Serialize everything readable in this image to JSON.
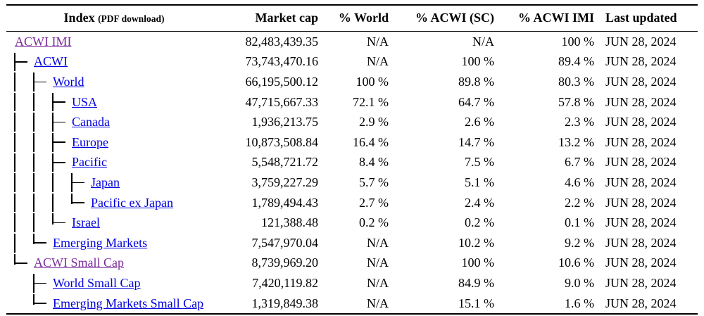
{
  "colors": {
    "background": "#ffffff",
    "text": "#000000",
    "rule": "#000000",
    "link": "#0000dd",
    "visited_link": "#7c2b9c"
  },
  "table": {
    "columns": [
      {
        "label": "Index",
        "sub": "(PDF download)"
      },
      {
        "label": "Market cap"
      },
      {
        "label": "% World"
      },
      {
        "label": "% ACWI (SC)"
      },
      {
        "label": "% ACWI IMI"
      },
      {
        "label": "Last updated"
      }
    ],
    "rows": [
      {
        "name": "ACWI IMI",
        "prefix": [],
        "visited": true,
        "market_cap": "82,483,439.35",
        "pct_world": "N/A",
        "pct_acwi_sc": "N/A",
        "pct_acwi_imi": "100 %",
        "last_updated": "JUN 28, 2024"
      },
      {
        "name": "ACWI",
        "prefix": [
          "branch"
        ],
        "visited": false,
        "market_cap": "73,743,470.16",
        "pct_world": "N/A",
        "pct_acwi_sc": "100 %",
        "pct_acwi_imi": "89.4 %",
        "last_updated": "JUN 28, 2024"
      },
      {
        "name": "World",
        "prefix": [
          "bar",
          "branch"
        ],
        "visited": false,
        "market_cap": "66,195,500.12",
        "pct_world": "100 %",
        "pct_acwi_sc": "89.8 %",
        "pct_acwi_imi": "80.3 %",
        "last_updated": "JUN 28, 2024"
      },
      {
        "name": "USA",
        "prefix": [
          "bar",
          "bar",
          "branch"
        ],
        "visited": false,
        "market_cap": "47,715,667.33",
        "pct_world": "72.1 %",
        "pct_acwi_sc": "64.7 %",
        "pct_acwi_imi": "57.8 %",
        "last_updated": "JUN 28, 2024"
      },
      {
        "name": "Canada",
        "prefix": [
          "bar",
          "bar",
          "branch"
        ],
        "visited": false,
        "market_cap": "1,936,213.75",
        "pct_world": "2.9 %",
        "pct_acwi_sc": "2.6 %",
        "pct_acwi_imi": "2.3 %",
        "last_updated": "JUN 28, 2024"
      },
      {
        "name": "Europe",
        "prefix": [
          "bar",
          "bar",
          "branch"
        ],
        "visited": false,
        "market_cap": "10,873,508.84",
        "pct_world": "16.4 %",
        "pct_acwi_sc": "14.7 %",
        "pct_acwi_imi": "13.2 %",
        "last_updated": "JUN 28, 2024"
      },
      {
        "name": "Pacific",
        "prefix": [
          "bar",
          "bar",
          "branch"
        ],
        "visited": false,
        "market_cap": "5,548,721.72",
        "pct_world": "8.4 %",
        "pct_acwi_sc": "7.5 %",
        "pct_acwi_imi": "6.7 %",
        "last_updated": "JUN 28, 2024"
      },
      {
        "name": "Japan",
        "prefix": [
          "bar",
          "bar",
          "bar",
          "branch"
        ],
        "visited": false,
        "market_cap": "3,759,227.29",
        "pct_world": "5.7 %",
        "pct_acwi_sc": "5.1 %",
        "pct_acwi_imi": "4.6 %",
        "last_updated": "JUN 28, 2024"
      },
      {
        "name": "Pacific ex Japan",
        "prefix": [
          "bar",
          "bar",
          "bar",
          "last"
        ],
        "visited": false,
        "market_cap": "1,789,494.43",
        "pct_world": "2.7 %",
        "pct_acwi_sc": "2.4 %",
        "pct_acwi_imi": "2.2 %",
        "last_updated": "JUN 28, 2024"
      },
      {
        "name": "Israel",
        "prefix": [
          "bar",
          "bar",
          "last"
        ],
        "visited": false,
        "market_cap": "121,388.48",
        "pct_world": "0.2 %",
        "pct_acwi_sc": "0.2 %",
        "pct_acwi_imi": "0.1 %",
        "last_updated": "JUN 28, 2024"
      },
      {
        "name": "Emerging Markets",
        "prefix": [
          "bar",
          "last"
        ],
        "visited": false,
        "market_cap": "7,547,970.04",
        "pct_world": "N/A",
        "pct_acwi_sc": "10.2 %",
        "pct_acwi_imi": "9.2 %",
        "last_updated": "JUN 28, 2024"
      },
      {
        "name": "ACWI Small Cap",
        "prefix": [
          "last"
        ],
        "visited": true,
        "market_cap": "8,739,969.20",
        "pct_world": "N/A",
        "pct_acwi_sc": "100 %",
        "pct_acwi_imi": "10.6 %",
        "last_updated": "JUN 28, 2024"
      },
      {
        "name": "World Small Cap",
        "prefix": [
          "space",
          "branch"
        ],
        "visited": false,
        "market_cap": "7,420,119.82",
        "pct_world": "N/A",
        "pct_acwi_sc": "84.9 %",
        "pct_acwi_imi": "9.0 %",
        "last_updated": "JUN 28, 2024"
      },
      {
        "name": "Emerging Markets Small Cap",
        "prefix": [
          "space",
          "last"
        ],
        "visited": false,
        "market_cap": "1,319,849.38",
        "pct_world": "N/A",
        "pct_acwi_sc": "15.1 %",
        "pct_acwi_imi": "1.6 %",
        "last_updated": "JUN 28, 2024"
      }
    ]
  }
}
